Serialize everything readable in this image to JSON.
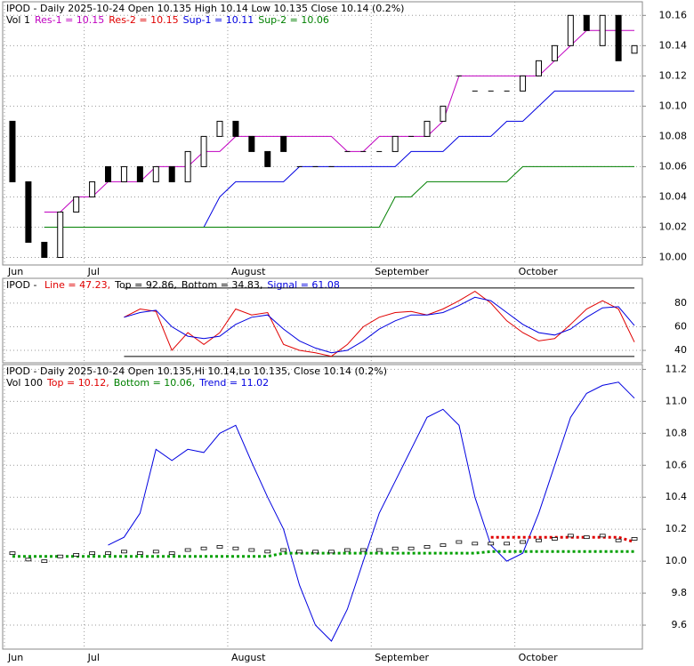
{
  "chart_data": [
    {
      "type": "candlestick",
      "header": [
        [
          {
            "text": "IPOD - Daily 2025-10-24 Open 10.135  High 10.14  Low 10.135  Close 10.14 (0.2%)",
            "color": "#000000"
          }
        ],
        [
          {
            "text": "Vol 1",
            "color": "#000000"
          },
          {
            "text": "Res-1 = 10.15",
            "color": "#c000c0"
          },
          {
            "text": "Res-2 = 10.15",
            "color": "#e00000"
          },
          {
            "text": "Sup-1 = 10.11",
            "color": "#0000e0"
          },
          {
            "text": "Sup-2 = 10.06",
            "color": "#008000"
          }
        ]
      ],
      "categories": [
        "Jun",
        null,
        null,
        null,
        null,
        "Jul",
        null,
        null,
        null,
        null,
        null,
        null,
        null,
        null,
        "August",
        null,
        null,
        null,
        null,
        null,
        null,
        null,
        null,
        "September",
        null,
        null,
        null,
        null,
        null,
        null,
        null,
        null,
        "October",
        null,
        null,
        null,
        null,
        null,
        null,
        null
      ],
      "open": [
        10.09,
        10.05,
        10.01,
        10.0,
        10.03,
        10.04,
        10.06,
        10.05,
        10.06,
        10.05,
        10.06,
        10.05,
        10.06,
        10.08,
        10.09,
        10.08,
        10.07,
        10.08,
        10.06,
        10.06,
        10.06,
        10.07,
        10.07,
        10.07,
        10.07,
        10.08,
        10.08,
        10.09,
        10.12,
        10.11,
        10.11,
        10.11,
        10.11,
        10.12,
        10.13,
        10.14,
        10.16,
        10.14,
        10.16,
        10.135
      ],
      "close": [
        10.05,
        10.01,
        10.0,
        10.03,
        10.04,
        10.05,
        10.05,
        10.06,
        10.05,
        10.06,
        10.05,
        10.07,
        10.08,
        10.09,
        10.08,
        10.07,
        10.06,
        10.07,
        10.06,
        10.06,
        10.06,
        10.07,
        10.07,
        10.07,
        10.08,
        10.08,
        10.09,
        10.1,
        10.12,
        10.11,
        10.11,
        10.11,
        10.12,
        10.13,
        10.14,
        10.16,
        10.15,
        10.16,
        10.13,
        10.14
      ],
      "series": [
        {
          "color": "#c000c0",
          "values": [
            null,
            null,
            10.03,
            10.03,
            10.04,
            10.04,
            10.05,
            10.05,
            10.05,
            10.06,
            10.06,
            10.06,
            10.07,
            10.07,
            10.08,
            10.08,
            10.08,
            10.08,
            10.08,
            10.08,
            10.08,
            10.07,
            10.07,
            10.08,
            10.08,
            10.08,
            10.08,
            10.09,
            10.12,
            10.12,
            10.12,
            10.12,
            10.12,
            10.12,
            10.13,
            10.14,
            10.15,
            10.15,
            10.15,
            10.15
          ]
        },
        {
          "color": "#0000e0",
          "values": [
            null,
            null,
            10.02,
            10.02,
            10.02,
            10.02,
            10.02,
            10.02,
            10.02,
            10.02,
            10.02,
            10.02,
            10.02,
            10.04,
            10.05,
            10.05,
            10.05,
            10.05,
            10.06,
            10.06,
            10.06,
            10.06,
            10.06,
            10.06,
            10.06,
            10.07,
            10.07,
            10.07,
            10.08,
            10.08,
            10.08,
            10.09,
            10.09,
            10.1,
            10.11,
            10.11,
            10.11,
            10.11,
            10.11,
            10.11
          ]
        },
        {
          "color": "#008000",
          "values": [
            null,
            null,
            10.02,
            10.02,
            10.02,
            10.02,
            10.02,
            10.02,
            10.02,
            10.02,
            10.02,
            10.02,
            10.02,
            10.02,
            10.02,
            10.02,
            10.02,
            10.02,
            10.02,
            10.02,
            10.02,
            10.02,
            10.02,
            10.02,
            10.04,
            10.04,
            10.05,
            10.05,
            10.05,
            10.05,
            10.05,
            10.05,
            10.06,
            10.06,
            10.06,
            10.06,
            10.06,
            10.06,
            10.06,
            10.06
          ]
        }
      ],
      "ylim": [
        9.995,
        10.169
      ],
      "yticks": [
        {
          "value": 10.0,
          "label": "10.00"
        },
        10.02,
        10.04,
        10.06,
        10.08,
        {
          "value": 10.1,
          "label": "10.10"
        },
        10.12,
        10.14,
        10.16
      ]
    },
    {
      "type": "line",
      "header": [
        [
          {
            "text": "IPOD - ",
            "color": "#000000"
          },
          {
            "text": "Line = 47.23,",
            "color": "#e00000"
          },
          {
            "text": "Top = 92.86,",
            "color": "#000000"
          },
          {
            "text": "Bottom = 34.83,",
            "color": "#000000"
          },
          {
            "text": "Signal = 61.08",
            "color": "#0000e0"
          }
        ]
      ],
      "categories": [
        "Jun",
        null,
        null,
        null,
        null,
        "Jul",
        null,
        null,
        null,
        null,
        null,
        null,
        null,
        null,
        "August",
        null,
        null,
        null,
        null,
        null,
        null,
        null,
        null,
        "September",
        null,
        null,
        null,
        null,
        null,
        null,
        null,
        null,
        "October",
        null,
        null,
        null,
        null,
        null,
        null,
        null
      ],
      "hlines": [
        92.86,
        34.83
      ],
      "series": [
        {
          "color": "#e00000",
          "values": [
            null,
            null,
            null,
            null,
            null,
            null,
            null,
            68,
            75,
            73,
            40,
            55,
            45,
            55,
            75,
            70,
            72,
            45,
            40,
            38,
            35,
            45,
            60,
            68,
            72,
            73,
            70,
            75,
            82,
            90,
            80,
            65,
            55,
            48,
            50,
            62,
            75,
            82,
            75,
            47
          ]
        },
        {
          "color": "#0000e0",
          "values": [
            null,
            null,
            null,
            null,
            null,
            null,
            null,
            68,
            72,
            74,
            60,
            52,
            50,
            52,
            62,
            68,
            70,
            58,
            48,
            42,
            38,
            40,
            48,
            58,
            65,
            70,
            70,
            72,
            78,
            85,
            82,
            72,
            62,
            55,
            53,
            58,
            68,
            76,
            77,
            61
          ]
        }
      ],
      "ylim": [
        29.5,
        101
      ],
      "yticks": [
        40,
        60,
        80
      ]
    },
    {
      "type": "line",
      "header": [
        [
          {
            "text": "IPOD - Daily 2025-10-24 Open 10.135,Hi 10.14,Lo 10.135, Close 10.14 (0.2%)",
            "color": "#000000"
          }
        ],
        [
          {
            "text": "Vol 100",
            "color": "#000000"
          },
          {
            "text": "Top = 10.12,",
            "color": "#e00000"
          },
          {
            "text": "Bottom = 10.06,",
            "color": "#008000"
          },
          {
            "text": "Trend = 11.02",
            "color": "#0000e0"
          }
        ]
      ],
      "categories": [
        "Jun",
        null,
        null,
        null,
        null,
        "Jul",
        null,
        null,
        null,
        null,
        null,
        null,
        null,
        null,
        "August",
        null,
        null,
        null,
        null,
        null,
        null,
        null,
        null,
        "September",
        null,
        null,
        null,
        null,
        null,
        null,
        null,
        null,
        "October",
        null,
        null,
        null,
        null,
        null,
        null,
        null
      ],
      "series": [
        {
          "color": "#0000e0",
          "dotted": false,
          "values": [
            null,
            null,
            null,
            null,
            null,
            null,
            10.1,
            10.15,
            10.3,
            10.7,
            10.63,
            10.7,
            10.68,
            10.8,
            10.85,
            10.62,
            10.4,
            10.2,
            9.85,
            9.6,
            9.5,
            9.7,
            10.0,
            10.3,
            10.5,
            10.7,
            10.9,
            10.95,
            10.85,
            10.4,
            10.1,
            10.0,
            10.05,
            10.3,
            10.6,
            10.9,
            11.05,
            11.1,
            11.12,
            11.02
          ]
        },
        {
          "color": "#e00000",
          "dotted": true,
          "values": [
            null,
            null,
            null,
            null,
            null,
            null,
            null,
            null,
            null,
            null,
            null,
            null,
            null,
            null,
            null,
            null,
            null,
            null,
            null,
            null,
            null,
            null,
            null,
            null,
            null,
            null,
            null,
            null,
            null,
            null,
            10.15,
            10.15,
            10.15,
            10.15,
            10.15,
            10.15,
            10.15,
            10.15,
            10.15,
            10.12
          ]
        },
        {
          "color": "#00a000",
          "dotted": true,
          "values": [
            10.03,
            10.03,
            10.03,
            10.03,
            10.03,
            10.03,
            10.03,
            10.03,
            10.03,
            10.03,
            10.03,
            10.03,
            10.03,
            10.03,
            10.03,
            10.03,
            10.03,
            10.05,
            10.05,
            10.05,
            10.05,
            10.05,
            10.05,
            10.05,
            10.05,
            10.05,
            10.05,
            10.05,
            10.05,
            10.05,
            10.06,
            10.06,
            10.06,
            10.06,
            10.06,
            10.06,
            10.06,
            10.06,
            10.06,
            10.06
          ]
        }
      ],
      "ylim": [
        9.45,
        11.23
      ],
      "yticks": [
        9.6,
        9.8,
        {
          "value": 10.0,
          "label": "10.0"
        },
        10.2,
        10.4,
        10.6,
        10.8,
        {
          "value": 11.0,
          "label": "11.0"
        },
        11.2
      ]
    }
  ]
}
